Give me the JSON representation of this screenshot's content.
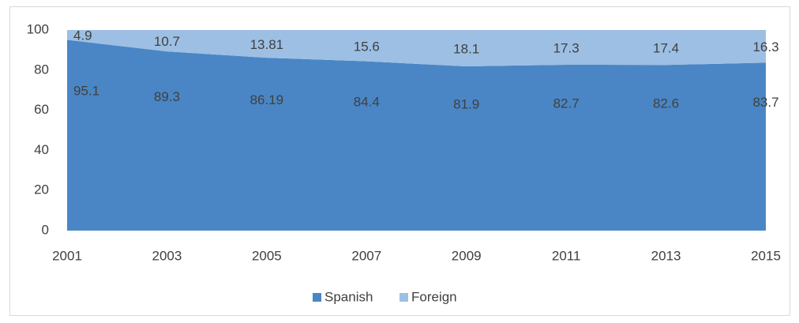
{
  "chart_data": {
    "type": "stacked_area",
    "categories": [
      "2001",
      "2003",
      "2005",
      "2007",
      "2009",
      "2011",
      "2013",
      "2015"
    ],
    "series": [
      {
        "name": "Spanish",
        "color": "#4a86c5",
        "values": [
          95.1,
          89.3,
          86.19,
          84.4,
          81.9,
          82.7,
          82.6,
          83.7
        ]
      },
      {
        "name": "Foreign",
        "color": "#9dbfe3",
        "values": [
          4.9,
          10.7,
          13.81,
          15.6,
          18.1,
          17.3,
          17.4,
          16.3
        ]
      }
    ],
    "ylim": [
      0,
      100
    ],
    "yticks": [
      0,
      20,
      40,
      60,
      80,
      100
    ],
    "legend": "bottom"
  }
}
